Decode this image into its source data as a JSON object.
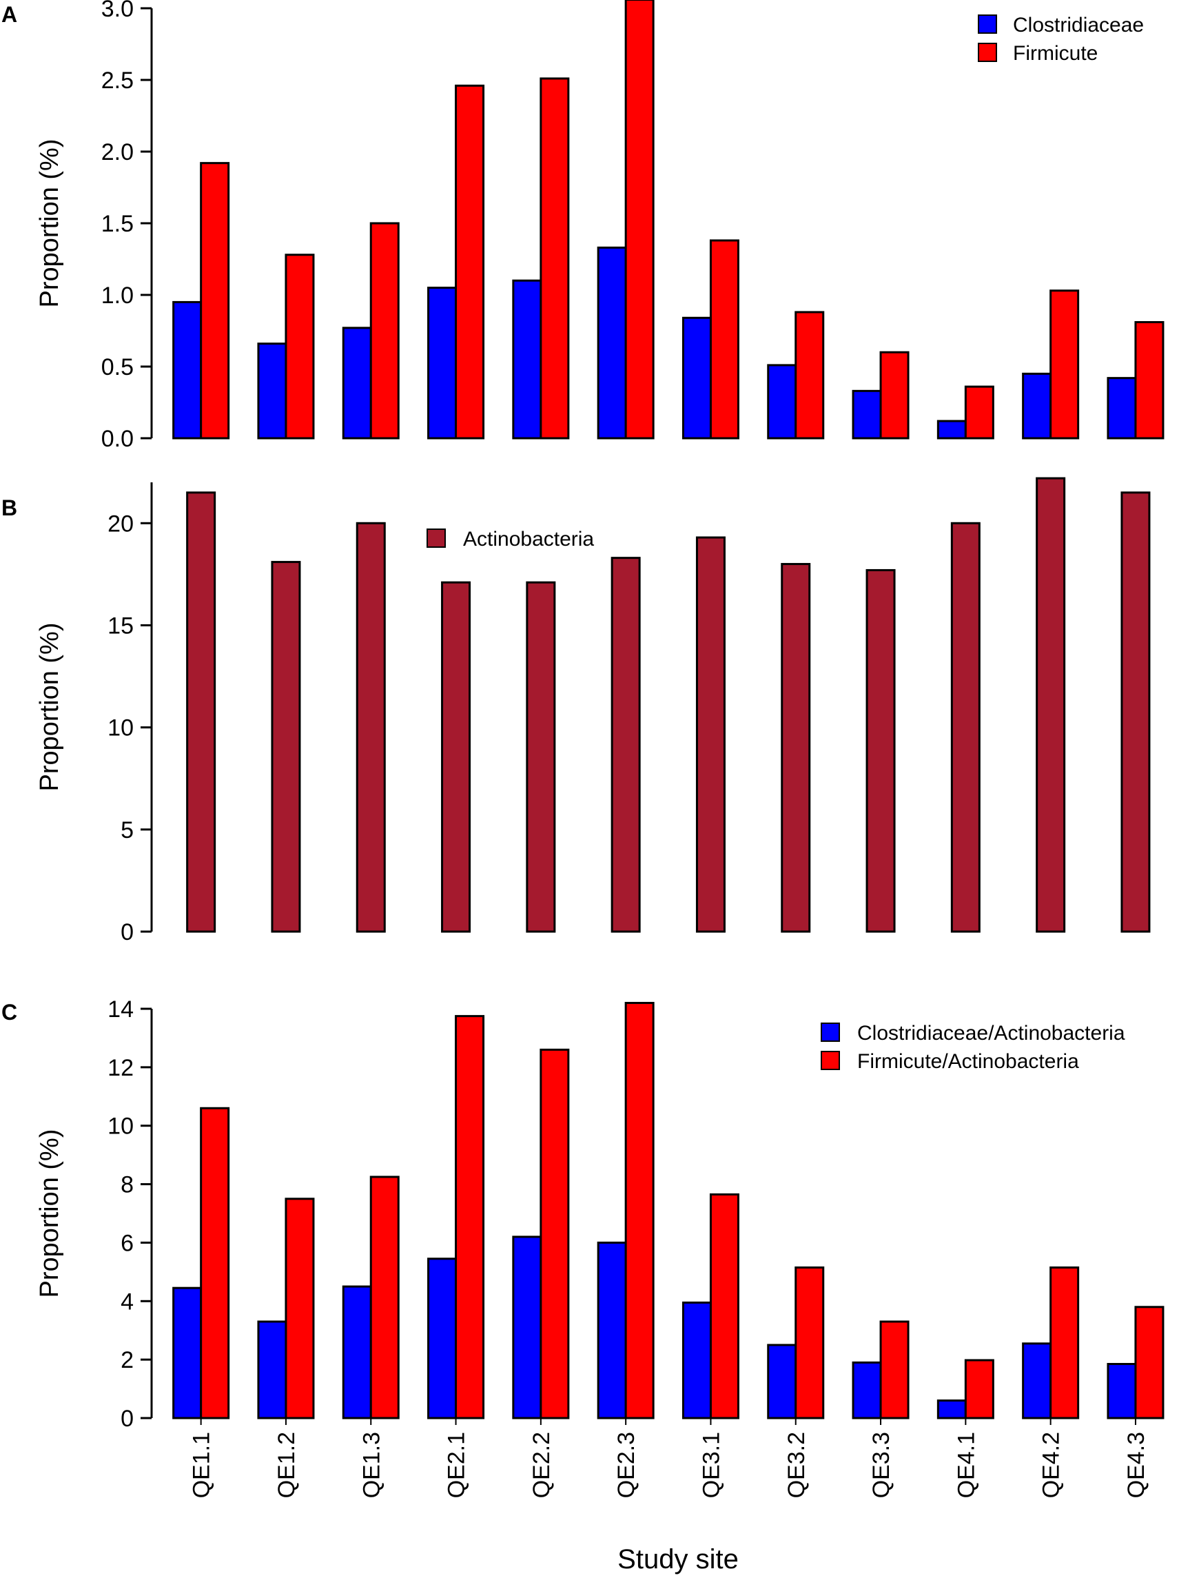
{
  "figure": {
    "xlabel": "Study site"
  },
  "colors": {
    "clostridiaceae": "#0000ff",
    "firmicute": "#ff0000",
    "actinobacteria": "#a51a2e",
    "edge": "#000000"
  },
  "chart_data": [
    {
      "panel": "A",
      "type": "bar",
      "ylabel": "Proportion (%)",
      "ylim": [
        0,
        3.0
      ],
      "yticks": [
        "0.0",
        "0.5",
        "1.0",
        "1.5",
        "2.0",
        "2.5",
        "3.0"
      ],
      "categories": [
        "QE1.1",
        "QE1.2",
        "QE1.3",
        "QE2.1",
        "QE2.2",
        "QE2.3",
        "QE3.1",
        "QE3.2",
        "QE3.3",
        "QE4.1",
        "QE4.2",
        "QE4.3"
      ],
      "legend_position": "top-right",
      "series": [
        {
          "name": "Clostridiaceae",
          "color_key": "clostridiaceae",
          "values": [
            0.95,
            0.66,
            0.77,
            1.05,
            1.1,
            1.33,
            0.84,
            0.51,
            0.33,
            0.12,
            0.45,
            0.42
          ]
        },
        {
          "name": "Firmicute",
          "color_key": "firmicute",
          "values": [
            1.92,
            1.28,
            1.5,
            2.46,
            2.51,
            3.06,
            1.38,
            0.88,
            0.6,
            0.36,
            1.03,
            0.81
          ]
        }
      ]
    },
    {
      "panel": "B",
      "type": "bar",
      "ylabel": "Proportion (%)",
      "ylim": [
        0,
        22
      ],
      "yticks": [
        "0",
        "5",
        "10",
        "15",
        "20"
      ],
      "categories": [
        "QE1.1",
        "QE1.2",
        "QE1.3",
        "QE2.1",
        "QE2.2",
        "QE2.3",
        "QE3.1",
        "QE3.2",
        "QE3.3",
        "QE4.1",
        "QE4.2",
        "QE4.3"
      ],
      "legend_position": "top-center",
      "series": [
        {
          "name": "Actinobacteria",
          "color_key": "actinobacteria",
          "values": [
            21.5,
            18.1,
            20.0,
            17.1,
            17.1,
            18.3,
            19.3,
            18.0,
            17.7,
            20.0,
            22.2,
            21.5
          ]
        }
      ]
    },
    {
      "panel": "C",
      "type": "bar",
      "ylabel": "Proportion (%)",
      "ylim": [
        0,
        14
      ],
      "yticks": [
        "0",
        "2",
        "4",
        "6",
        "8",
        "10",
        "12",
        "14"
      ],
      "categories": [
        "QE1.1",
        "QE1.2",
        "QE1.3",
        "QE2.1",
        "QE2.2",
        "QE2.3",
        "QE3.1",
        "QE3.2",
        "QE3.3",
        "QE4.1",
        "QE4.2",
        "QE4.3"
      ],
      "legend_position": "top-right",
      "series": [
        {
          "name": "Clostridiaceae/Actinobacteria",
          "color_key": "clostridiaceae",
          "values": [
            4.45,
            3.3,
            4.5,
            5.45,
            6.2,
            6.0,
            3.95,
            2.5,
            1.9,
            0.6,
            2.55,
            1.85
          ]
        },
        {
          "name": "Firmicute/Actinobacteria",
          "color_key": "firmicute",
          "values": [
            10.6,
            7.5,
            8.25,
            13.75,
            12.6,
            14.2,
            7.65,
            5.15,
            3.3,
            1.98,
            5.15,
            3.8
          ]
        }
      ]
    }
  ]
}
